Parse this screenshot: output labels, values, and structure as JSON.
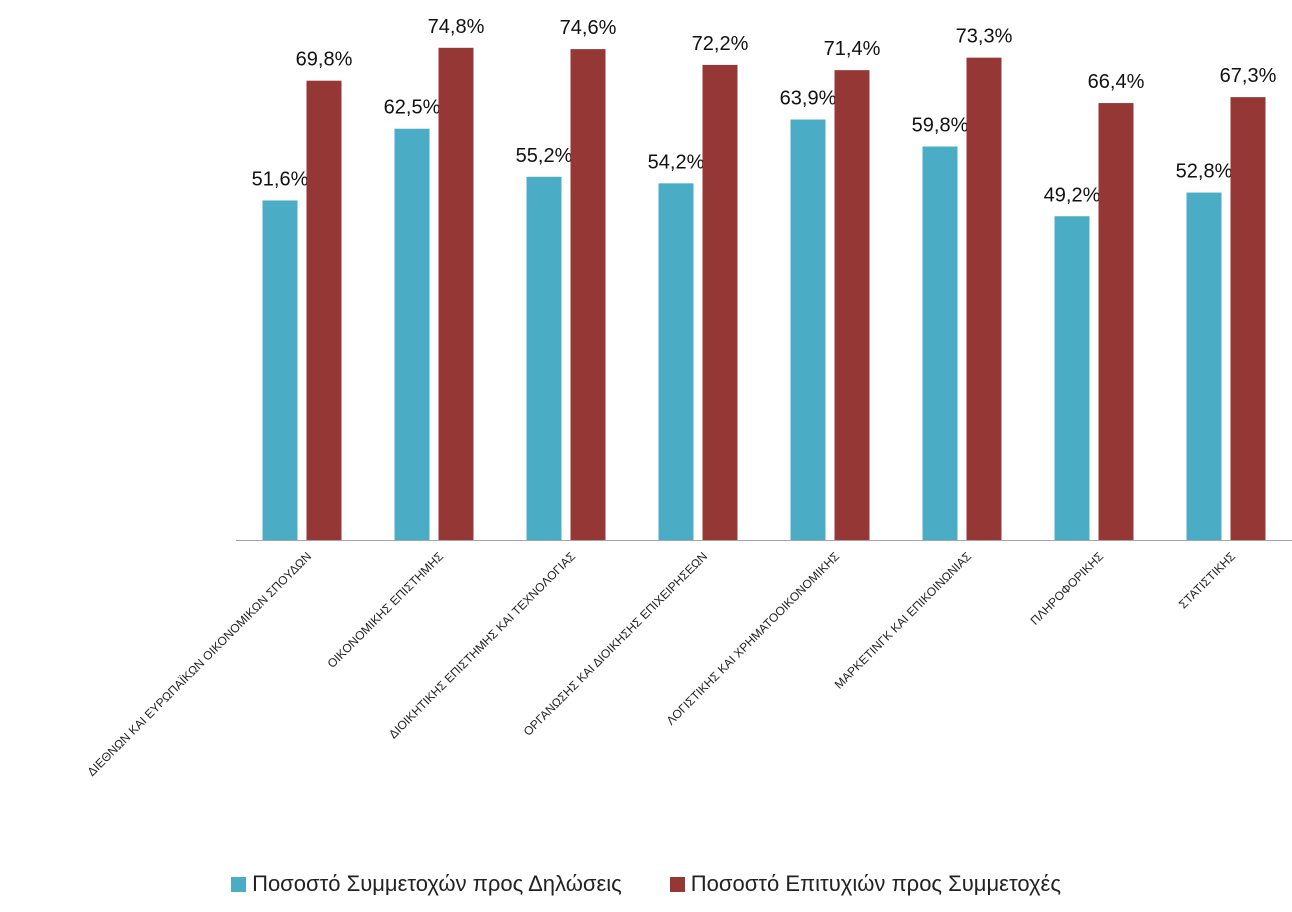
{
  "chart_data": {
    "type": "bar",
    "categories": [
      "ΔΙΕΘΝΩΝ ΚΑΙ ΕΥΡΩΠΑΪΚΩΝ ΟΙΚΟΝΟΜΙΚΩΝ ΣΠΟΥΔΩΝ",
      "ΟΙΚΟΝΟΜΙΚΗΣ ΕΠΙΣΤΗΜΗΣ",
      "ΔΙΟΙΚΗΤΙΚΗΣ ΕΠΙΣΤΗΜΗΣ ΚΑΙ ΤΕΧΝΟΛΟΓΙΑΣ",
      "ΟΡΓΑΝΩΣΗΣ ΚΑΙ ΔΙΟΙΚΗΣΗΣ ΕΠΙΧΕΙΡΗΣΕΩΝ",
      "ΛΟΓΙΣΤΙΚΗΣ ΚΑΙ ΧΡΗΜΑΤΟΟΙΚΟΝΟΜΙΚΗΣ",
      "ΜΑΡΚΕΤΙΝΓΚ ΚΑΙ ΕΠΙΚΟΙΝΩΝΙΑΣ",
      "ΠΛΗΡΟΦΟΡΙΚΗΣ",
      "ΣΤΑΤΙΣΤΙΚΗΣ"
    ],
    "series": [
      {
        "name": "Ποσοστό Συμμετοχών προς Δηλώσεις",
        "color": "#4bacc6",
        "values": [
          51.6,
          62.5,
          55.2,
          54.2,
          63.9,
          59.8,
          49.2,
          52.8
        ],
        "labels": [
          "51,6%",
          "62,5%",
          "55,2%",
          "54,2%",
          "63,9%",
          "59,8%",
          "49,2%",
          "52,8%"
        ]
      },
      {
        "name": "Ποσοστό Επιτυχιών προς Συμμετοχές",
        "color": "#953735",
        "values": [
          69.8,
          74.8,
          74.6,
          72.2,
          71.4,
          73.3,
          66.4,
          67.3
        ],
        "labels": [
          "69,8%",
          "74,8%",
          "74,6%",
          "72,2%",
          "71,4%",
          "73,3%",
          "66,4%",
          "67,3%"
        ]
      }
    ],
    "ylim": [
      0,
      81
    ],
    "grid": false,
    "legend_position": "bottom",
    "axis_color": "#a6a6a6",
    "title": "",
    "xlabel": "",
    "ylabel": ""
  }
}
